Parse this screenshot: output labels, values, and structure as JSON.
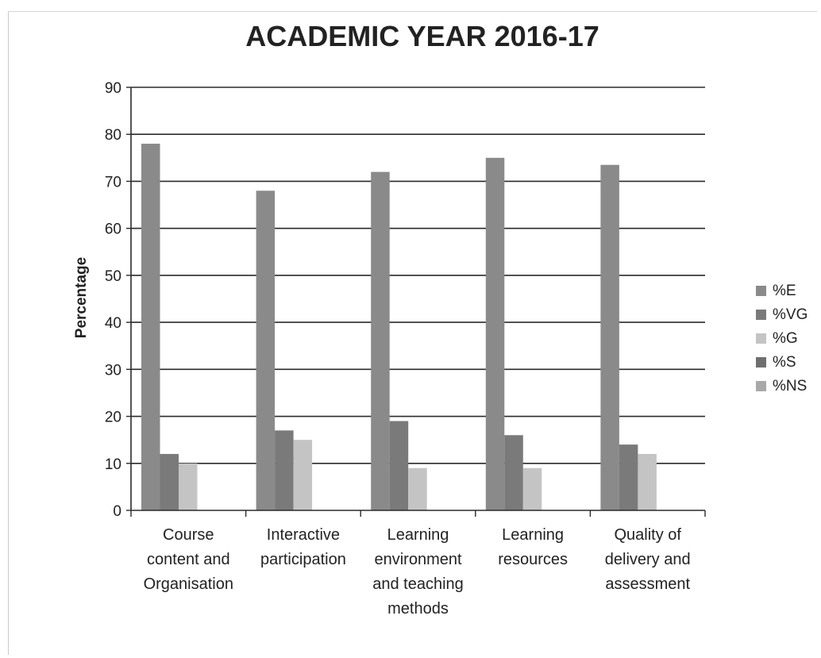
{
  "chart_data": {
    "type": "bar",
    "title": "ACADEMIC YEAR 2016-17",
    "xlabel": "",
    "ylabel": "Percentage",
    "ylim": [
      0,
      90
    ],
    "yticks": [
      0,
      10,
      20,
      30,
      40,
      50,
      60,
      70,
      80,
      90
    ],
    "grid": true,
    "legend_position": "right",
    "categories": [
      [
        "Course",
        "content and",
        "Organisation"
      ],
      [
        "Interactive",
        "participation"
      ],
      [
        "Learning",
        "environment",
        "and teaching",
        "methods"
      ],
      [
        "Learning",
        "resources"
      ],
      [
        "Quality of",
        "delivery and",
        "assessment"
      ]
    ],
    "series": [
      {
        "name": "%E",
        "color": "#8a8a8a",
        "values": [
          78,
          68,
          72,
          75,
          73.5
        ]
      },
      {
        "name": "%VG",
        "color": "#7a7a7a",
        "values": [
          12,
          17,
          19,
          16,
          14
        ]
      },
      {
        "name": "%G",
        "color": "#c4c4c4",
        "values": [
          10,
          15,
          9,
          9,
          12
        ]
      },
      {
        "name": "%S",
        "color": "#6f6f6f",
        "values": [
          0,
          0,
          0,
          0,
          0
        ]
      },
      {
        "name": "%NS",
        "color": "#a8a8a8",
        "values": [
          0,
          0,
          0,
          0,
          0
        ]
      }
    ]
  }
}
